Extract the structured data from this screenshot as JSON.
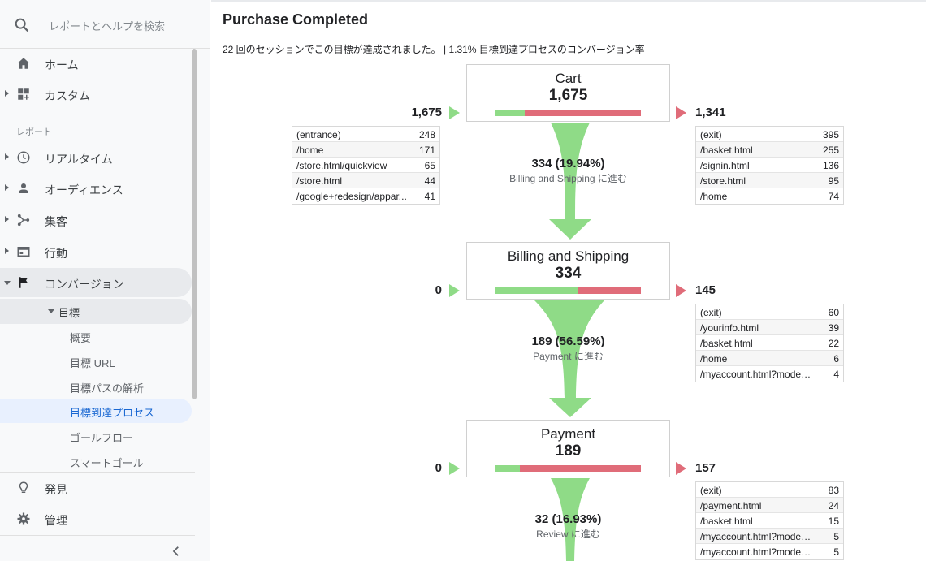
{
  "sidebar": {
    "search_placeholder": "レポートとヘルプを検索",
    "home": "ホーム",
    "custom": "カスタム",
    "section_reports": "レポート",
    "realtime": "リアルタイム",
    "audience": "オーディエンス",
    "acquisition": "集客",
    "behavior": "行動",
    "conversions": "コンバージョン",
    "goals": "目標",
    "goal_items": [
      "概要",
      "目標 URL",
      "目標パスの解析",
      "目標到達プロセス",
      "ゴールフロー",
      "スマートゴール"
    ],
    "discover": "発見",
    "admin": "管理"
  },
  "main": {
    "title": "Purchase Completed",
    "summary": "22 回のセッションでこの目標が達成されました。 | 1.31% 目標到達プロセスのコンバージョン率"
  },
  "stages": [
    {
      "name": "Cart",
      "count": "1,675",
      "continue_fraction": 0.1994,
      "in_count": "1,675",
      "out_count": "1,341",
      "entrances": [
        [
          "(entrance)",
          "248"
        ],
        [
          "/home",
          "171"
        ],
        [
          "/store.html/quickview",
          "65"
        ],
        [
          "/store.html",
          "44"
        ],
        [
          "/google+redesign/appar...",
          "41"
        ]
      ],
      "exits": [
        [
          "(exit)",
          "395"
        ],
        [
          "/basket.html",
          "255"
        ],
        [
          "/signin.html",
          "136"
        ],
        [
          "/store.html",
          "95"
        ],
        [
          "/home",
          "74"
        ]
      ],
      "conversion": "334 (19.94%)",
      "conversion_label": "Billing and Shipping に進む"
    },
    {
      "name": "Billing and Shipping",
      "count": "334",
      "continue_fraction": 0.5659,
      "in_count": "0",
      "out_count": "145",
      "entrances": [],
      "exits": [
        [
          "(exit)",
          "60"
        ],
        [
          "/yourinfo.html",
          "39"
        ],
        [
          "/basket.html",
          "22"
        ],
        [
          "/home",
          "6"
        ],
        [
          "/myaccount.html?mode=b...",
          "4"
        ]
      ],
      "conversion": "189 (56.59%)",
      "conversion_label": "Payment に進む"
    },
    {
      "name": "Payment",
      "count": "189",
      "continue_fraction": 0.1693,
      "in_count": "0",
      "out_count": "157",
      "entrances": [],
      "exits": [
        [
          "(exit)",
          "83"
        ],
        [
          "/payment.html",
          "24"
        ],
        [
          "/basket.html",
          "15"
        ],
        [
          "/myaccount.html?mode=b...",
          "5"
        ],
        [
          "/myaccount.html?mode=v...",
          "5"
        ]
      ],
      "conversion": "32 (16.93%)",
      "conversion_label": "Review に進む"
    }
  ],
  "colors": {
    "continue": "#8fdb87",
    "exit": "#e06c79",
    "active_nav": "#1967d2"
  },
  "icons": [
    "search-icon",
    "home-icon",
    "dashboard-icon",
    "clock-icon",
    "person-icon",
    "acquisition-icon",
    "behavior-icon",
    "flag-icon",
    "lightbulb-icon",
    "gear-icon",
    "chevron-left-icon"
  ]
}
